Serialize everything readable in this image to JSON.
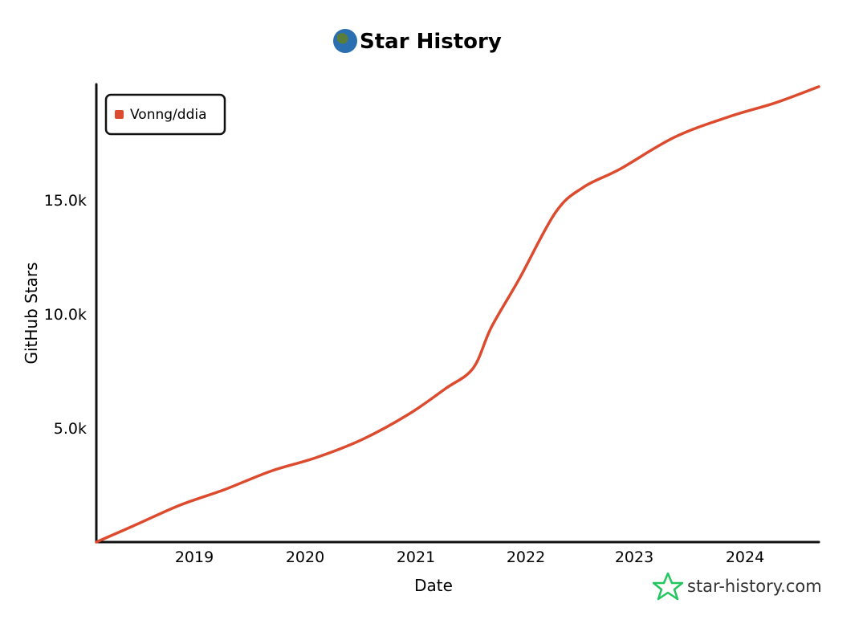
{
  "chart_data": {
    "type": "line",
    "title": "Star History",
    "xlabel": "Date",
    "ylabel": "GitHub Stars",
    "legend_position": "top-left",
    "grid": false,
    "x_ticks": [
      "2019",
      "2020",
      "2021",
      "2022",
      "2023",
      "2024"
    ],
    "y_ticks": [
      "5.0k",
      "10.0k",
      "15.0k"
    ],
    "xlim": [
      "2018-03-01",
      "2024-09-20"
    ],
    "ylim": [
      0,
      20000
    ],
    "series": [
      {
        "name": "Vonng/ddia",
        "color": "#dd4b2f",
        "points": [
          [
            "2018-03-01",
            0
          ],
          [
            "2018-07-01",
            700
          ],
          [
            "2018-12-01",
            1600
          ],
          [
            "2019-05-01",
            2300
          ],
          [
            "2019-10-01",
            3100
          ],
          [
            "2020-03-01",
            3700
          ],
          [
            "2020-08-01",
            4500
          ],
          [
            "2021-01-01",
            5600
          ],
          [
            "2021-05-01",
            6700
          ],
          [
            "2021-08-01",
            7600
          ],
          [
            "2021-10-01",
            9400
          ],
          [
            "2022-01-01",
            11500
          ],
          [
            "2022-05-01",
            14400
          ],
          [
            "2022-08-01",
            15500
          ],
          [
            "2022-12-01",
            16300
          ],
          [
            "2023-06-01",
            17700
          ],
          [
            "2023-12-01",
            18600
          ],
          [
            "2024-05-01",
            19200
          ],
          [
            "2024-09-20",
            19900
          ]
        ]
      }
    ]
  },
  "brand": {
    "text": "star-history.com",
    "color": "#22c55e"
  }
}
